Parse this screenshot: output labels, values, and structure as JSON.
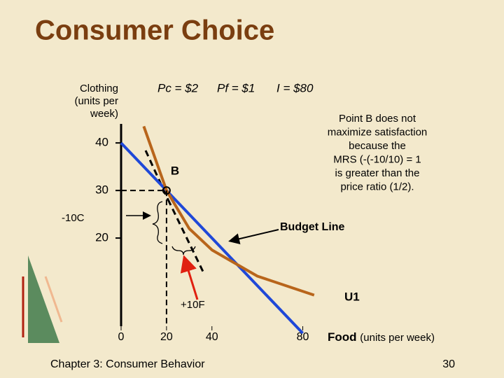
{
  "chart_data": {
    "type": "line",
    "title": "Consumer Choice",
    "y_label": [
      "Clothing",
      "(units per",
      "week)"
    ],
    "x_label": "Food",
    "x_label_note": "(units per week)",
    "prices": [
      "Pc = $2",
      "Pf = $1",
      "I = $80"
    ],
    "annotation": [
      "Point B does not",
      "maximize satisfaction",
      "because the",
      "MRS (-(-10/10) = 1",
      "is greater than the",
      "price ratio (1/2)."
    ],
    "change_labels": [
      "-10C",
      "+10F"
    ],
    "xlim": [
      0,
      86
    ],
    "ylim": [
      0,
      44
    ],
    "xticks": [
      0,
      20,
      40,
      80
    ],
    "yticks": [
      20,
      30,
      40
    ],
    "series": [
      {
        "name": "Budget Line",
        "color": "#1f48d8",
        "x": [
          0,
          80
        ],
        "values": [
          40,
          0
        ]
      },
      {
        "name": "U1",
        "color": "#b8651b",
        "x": [
          10,
          20,
          30,
          40,
          60,
          85
        ],
        "values": [
          43.5,
          30,
          22,
          17.5,
          12,
          8
        ]
      }
    ],
    "points": [
      {
        "label": "B",
        "x": 20,
        "y": 30
      }
    ],
    "footer": "Chapter 3: Consumer Behavior",
    "page_number": "30"
  }
}
